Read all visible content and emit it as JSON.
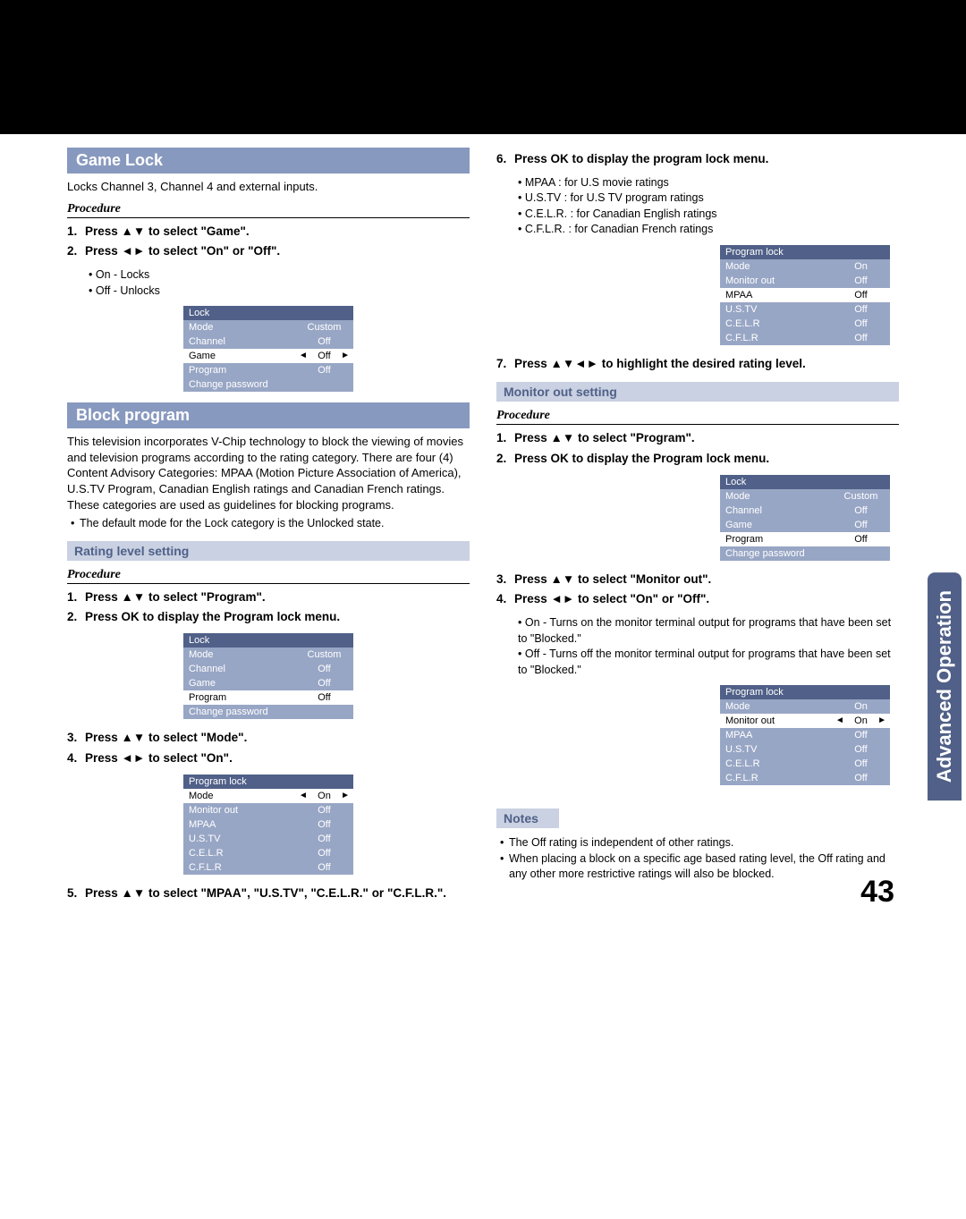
{
  "page_number": "43",
  "side_tab": "Advanced Operation",
  "left": {
    "game_lock": {
      "title": "Game Lock",
      "desc": "Locks Channel 3, Channel 4 and external inputs.",
      "proc_label": "Procedure",
      "step1": "Press ▲▼ to select \"Game\".",
      "step2": "Press ◄► to select \"On\" or \"Off\".",
      "sub1": "On - Locks",
      "sub2": "Off - Unlocks",
      "menu": {
        "title": "Lock",
        "rows": [
          {
            "label": "Mode",
            "val": "Custom",
            "class": "dim"
          },
          {
            "label": "Channel",
            "val": "Off",
            "class": "dim"
          },
          {
            "label": "Game",
            "val": "Off",
            "class": "hl",
            "sel": true
          },
          {
            "label": "Program",
            "val": "Off",
            "class": "dim"
          },
          {
            "label": "Change password",
            "val": "",
            "class": "dim"
          }
        ]
      }
    },
    "block_program": {
      "title": "Block program",
      "desc": "This television incorporates V-Chip technology to block the viewing of movies and television programs according to the rating category. There are four (4) Content Advisory Categories: MPAA (Motion Picture Association of America), U.S.TV Program, Canadian English ratings and Canadian French ratings. These categories are used as guidelines for blocking programs.",
      "note": "The default mode for the Lock category is the Unlocked state."
    },
    "rating": {
      "title": "Rating level setting",
      "proc_label": "Procedure",
      "step1": "Press ▲▼ to select \"Program\".",
      "step2": "Press OK to display the Program lock menu.",
      "menu1": {
        "title": "Lock",
        "rows": [
          {
            "label": "Mode",
            "val": "Custom",
            "class": "dim"
          },
          {
            "label": "Channel",
            "val": "Off",
            "class": "dim"
          },
          {
            "label": "Game",
            "val": "Off",
            "class": "dim"
          },
          {
            "label": "Program",
            "val": "Off",
            "class": "hl"
          },
          {
            "label": "Change password",
            "val": "",
            "class": "dim"
          }
        ]
      },
      "step3": "Press ▲▼ to select \"Mode\".",
      "step4": "Press ◄► to select \"On\".",
      "menu2": {
        "title": "Program lock",
        "rows": [
          {
            "label": "Mode",
            "val": "On",
            "class": "hl",
            "sel": true
          },
          {
            "label": "Monitor out",
            "val": "Off",
            "class": "dim"
          },
          {
            "label": "MPAA",
            "val": "Off",
            "class": "dim"
          },
          {
            "label": "U.S.TV",
            "val": "Off",
            "class": "dim"
          },
          {
            "label": "C.E.L.R",
            "val": "Off",
            "class": "dim"
          },
          {
            "label": "C.F.L.R",
            "val": "Off",
            "class": "dim"
          }
        ]
      },
      "step5": "Press ▲▼ to select \"MPAA\", \"U.S.TV\", \"C.E.L.R.\" or \"C.F.L.R.\"."
    }
  },
  "right": {
    "step6": "Press OK to display the program lock menu.",
    "b1": "MPAA : for U.S movie ratings",
    "b2": "U.S.TV : for U.S TV program ratings",
    "b3": "C.E.L.R. : for Canadian English ratings",
    "b4": "C.F.L.R. : for Canadian French ratings",
    "menu3": {
      "title": "Program lock",
      "rows": [
        {
          "label": "Mode",
          "val": "On",
          "class": "dim"
        },
        {
          "label": "Monitor out",
          "val": "Off",
          "class": "dim"
        },
        {
          "label": "MPAA",
          "val": "Off",
          "class": "hl"
        },
        {
          "label": "U.S.TV",
          "val": "Off",
          "class": "dim"
        },
        {
          "label": "C.E.L.R",
          "val": "Off",
          "class": "dim"
        },
        {
          "label": "C.F.L.R",
          "val": "Off",
          "class": "dim"
        }
      ]
    },
    "step7": "Press ▲▼◄► to highlight the desired rating level.",
    "monitor": {
      "title": "Monitor out setting",
      "proc_label": "Procedure",
      "step1": "Press ▲▼ to select \"Program\".",
      "step2": "Press OK to display the Program lock menu.",
      "menu4": {
        "title": "Lock",
        "rows": [
          {
            "label": "Mode",
            "val": "Custom",
            "class": "dim"
          },
          {
            "label": "Channel",
            "val": "Off",
            "class": "dim"
          },
          {
            "label": "Game",
            "val": "Off",
            "class": "dim"
          },
          {
            "label": "Program",
            "val": "Off",
            "class": "hl"
          },
          {
            "label": "Change password",
            "val": "",
            "class": "dim"
          }
        ]
      },
      "step3": "Press ▲▼ to select \"Monitor out\".",
      "step4": "Press ◄► to select \"On\" or \"Off\".",
      "sub1": "On - Turns on the monitor terminal output for programs that have been set to \"Blocked.\"",
      "sub2": "Off - Turns off the monitor terminal output for programs that have been set to \"Blocked.\"",
      "menu5": {
        "title": "Program lock",
        "rows": [
          {
            "label": "Mode",
            "val": "On",
            "class": "dim"
          },
          {
            "label": "Monitor out",
            "val": "On",
            "class": "hl",
            "sel": true
          },
          {
            "label": "MPAA",
            "val": "Off",
            "class": "dim"
          },
          {
            "label": "U.S.TV",
            "val": "Off",
            "class": "dim"
          },
          {
            "label": "C.E.L.R",
            "val": "Off",
            "class": "dim"
          },
          {
            "label": "C.F.L.R",
            "val": "Off",
            "class": "dim"
          }
        ]
      }
    },
    "notes": {
      "title": "Notes",
      "n1": "The Off rating is independent of other ratings.",
      "n2": "When placing a block on a specific age based rating level, the Off rating and any other more restrictive ratings will also be blocked."
    }
  }
}
